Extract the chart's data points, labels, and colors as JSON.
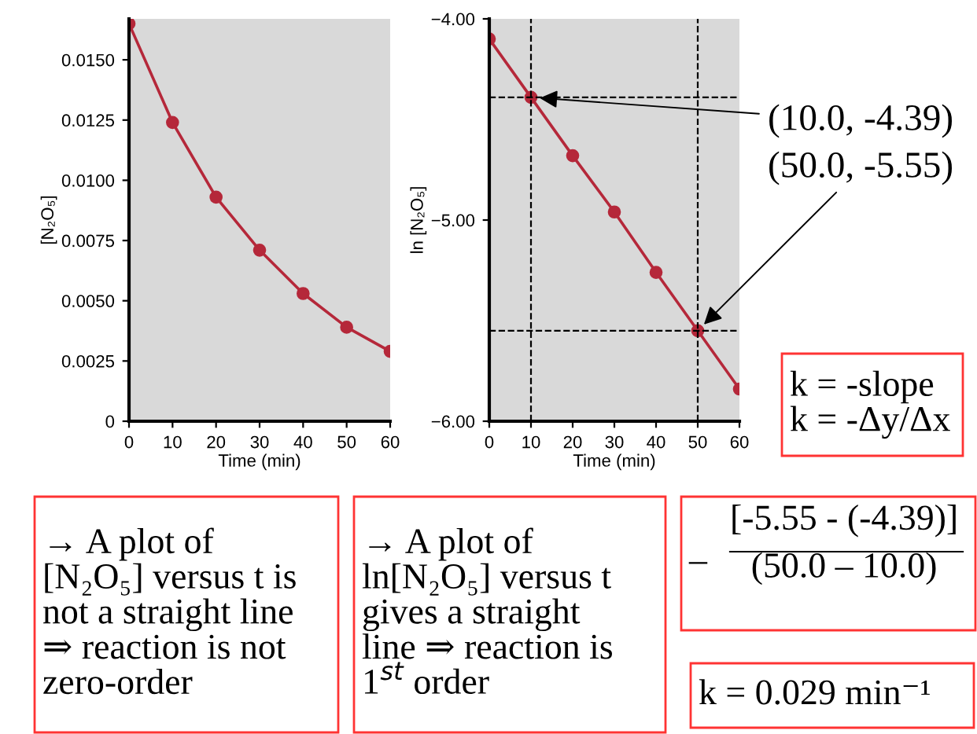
{
  "chart_data": [
    {
      "type": "line",
      "x": [
        0,
        10,
        20,
        30,
        40,
        50,
        60
      ],
      "values": [
        0.0165,
        0.0124,
        0.0093,
        0.0071,
        0.0053,
        0.0039,
        0.0029
      ],
      "color": "#b5283a",
      "marker": "circle",
      "xlim": [
        0,
        60
      ],
      "ylim": [
        0,
        0.0167
      ],
      "xticks": [
        0,
        10,
        20,
        30,
        40,
        50,
        60
      ],
      "yticks": [
        0,
        0.0025,
        {
          "value": 0.005,
          "label": "0.0050"
        },
        0.0075,
        {
          "value": 0.01,
          "label": "0.0100"
        },
        0.0125,
        {
          "value": 0.015,
          "label": "0.0150"
        }
      ],
      "xlabel": "Time (min)",
      "ylabel": "[N₂O₅]",
      "grid": false,
      "annotations": [
        "→ A plot of\n[N₂O₅] versus t is\nnot a straight line\n⇒ reaction is not\nzero-order"
      ]
    },
    {
      "type": "line",
      "x": [
        0,
        10,
        20,
        30,
        40,
        50,
        60
      ],
      "values": [
        -4.1,
        -4.39,
        -4.68,
        -4.96,
        -5.26,
        -5.55,
        -5.84
      ],
      "color": "#b5283a",
      "marker": "circle",
      "xlim": [
        0,
        60
      ],
      "ylim": [
        -6,
        -4
      ],
      "xticks": [
        0,
        10,
        20,
        30,
        40,
        50,
        60
      ],
      "yticks": [
        {
          "value": -6,
          "label": "−6.00"
        },
        {
          "value": -5,
          "label": "−5.00"
        },
        {
          "value": -4,
          "label": "−4.00"
        }
      ],
      "xlabel": "Time (min)",
      "ylabel": "ln [N₂O₅]",
      "grid": false,
      "ref_lines": [
        {
          "axis": "x",
          "value": 10,
          "line_style": "dashed",
          "color": "#000000"
        },
        {
          "axis": "x",
          "value": 50,
          "line_style": "dashed",
          "color": "#000000"
        },
        {
          "axis": "y",
          "value": -4.39,
          "line_style": "dashed",
          "color": "#000000"
        },
        {
          "axis": "y",
          "value": -5.55,
          "line_style": "dashed",
          "color": "#000000"
        }
      ],
      "annotations": [
        {
          "text": "(10.0, -4.39)",
          "x": 10,
          "y": -4.39
        },
        {
          "text": "(50.0, -5.55)",
          "x": 50,
          "y": -5.55
        },
        "k = -slope\nk = -Δy/Δx",
        "→ A plot of\nln[N₂O₅] versus t\ngives a straight\nline ⇒ reaction is\n1$^{st}$ order",
        "–",
        "[-5.55 - (-4.39)]\n(50.0 – 10.0)",
        "k = 0.029 min⁻¹"
      ]
    }
  ]
}
